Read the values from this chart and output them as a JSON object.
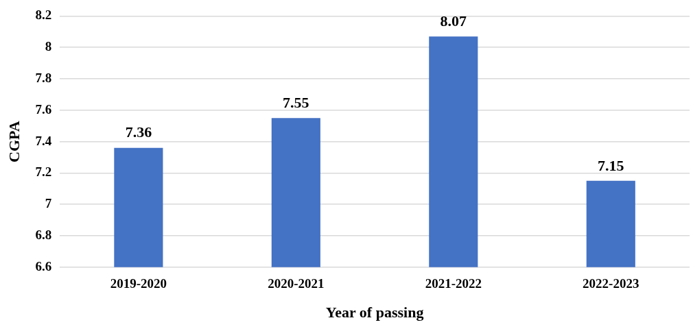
{
  "chart_data": {
    "type": "bar",
    "xlabel": "Year of passing",
    "ylabel": "CGPA",
    "categories": [
      "2019-2020",
      "2020-2021",
      "2021-2022",
      "2022-2023"
    ],
    "values": [
      7.36,
      7.55,
      8.07,
      7.15
    ],
    "color": "#4472c4",
    "ylim": [
      6.6,
      8.2
    ],
    "yticks": [
      6.6,
      6.8,
      7,
      7.2,
      7.4,
      7.6,
      7.8,
      8,
      8.2
    ],
    "grid": "y",
    "data_labels": true
  }
}
